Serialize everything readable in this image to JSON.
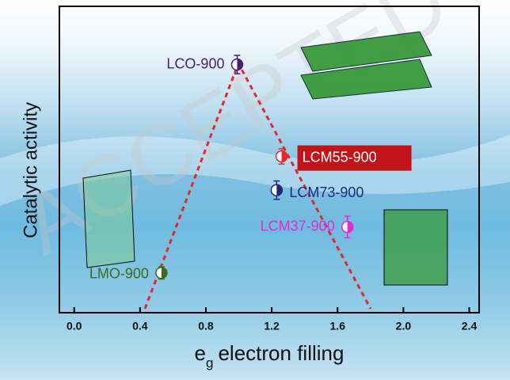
{
  "chart_data": {
    "type": "scatter",
    "watermark": "ACCEPTED",
    "ylabel": "Catalytic activity",
    "xlabel": "e",
    "xlabel_sub": "g",
    "xlabel_rest": "electron filling",
    "xlim": [
      -0.09,
      2.46
    ],
    "ylim": [
      0,
      1
    ],
    "xticks": [
      {
        "value": 0,
        "label": "0.0"
      },
      0.4,
      0.8,
      1.2,
      1.6,
      {
        "value": 2,
        "label": "2.0"
      },
      2.4
    ],
    "series": [
      {
        "name": "LCO-900",
        "color": "#4b1e6e",
        "x": [
          0.99
        ],
        "values": [
          0.81
        ],
        "errors": [
          0.03
        ]
      },
      {
        "name": "LCM55-900",
        "color": "#e8262a",
        "x": [
          1.26
        ],
        "values": [
          0.51
        ],
        "errors": [
          0.025
        ]
      },
      {
        "name": "LCM73-900",
        "color": "#1c2a7a",
        "x": [
          1.23
        ],
        "values": [
          0.4
        ],
        "errors": [
          0.03
        ]
      },
      {
        "name": "LCM37-900",
        "color": "#e62bd0",
        "x": [
          1.66
        ],
        "values": [
          0.28
        ],
        "errors": [
          0.035
        ]
      },
      {
        "name": "LMO-900",
        "color": "#3f6b18",
        "x": [
          0.53
        ],
        "values": [
          0.13
        ],
        "errors": [
          0.02
        ]
      }
    ]
  }
}
